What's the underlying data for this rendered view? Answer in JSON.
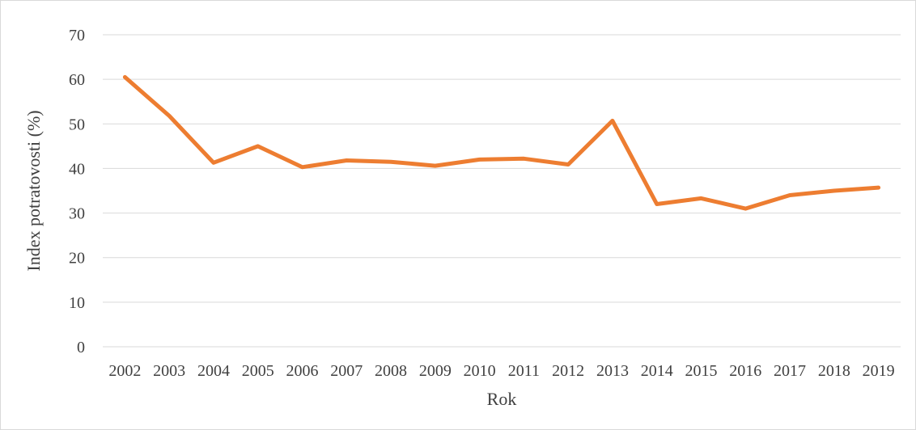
{
  "chart_data": {
    "type": "line",
    "title": "",
    "xlabel": "Rok",
    "ylabel": "Index potratovosti (%)",
    "ylim": [
      0,
      70
    ],
    "yticks": [
      0,
      10,
      20,
      30,
      40,
      50,
      60,
      70
    ],
    "grid": true,
    "legend": "none",
    "categories": [
      "2002",
      "2003",
      "2004",
      "2005",
      "2006",
      "2007",
      "2008",
      "2009",
      "2010",
      "2011",
      "2012",
      "2013",
      "2014",
      "2015",
      "2016",
      "2017",
      "2018",
      "2019"
    ],
    "series": [
      {
        "color": "#ed7d31",
        "values": [
          60.5,
          51.8,
          41.3,
          45.0,
          40.3,
          41.8,
          41.5,
          40.6,
          42.0,
          42.2,
          40.9,
          50.7,
          32.0,
          33.3,
          31.0,
          34.0,
          35.0,
          35.7
        ]
      }
    ]
  }
}
